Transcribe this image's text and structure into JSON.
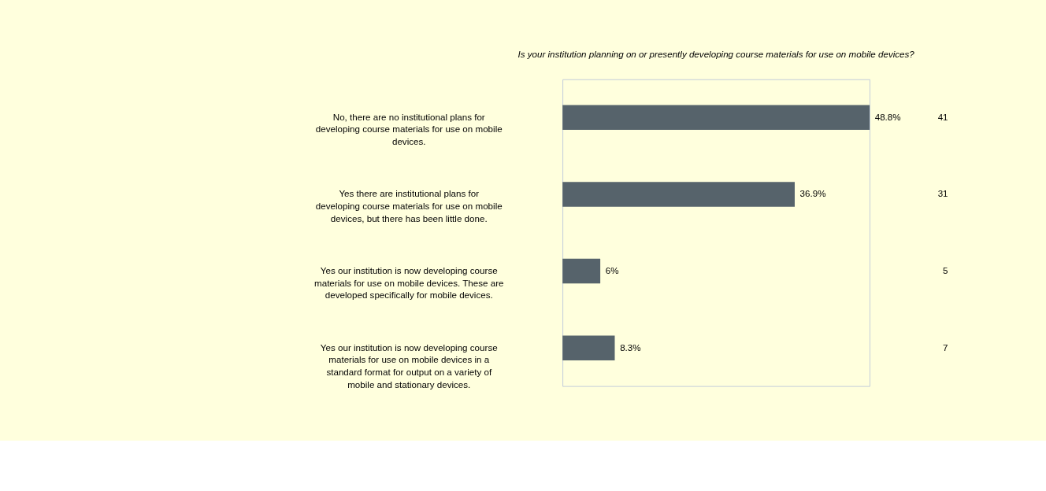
{
  "chart_data": {
    "type": "bar",
    "orientation": "horizontal",
    "title": "Is your institution planning on or presently developing course materials for use on mobile devices?",
    "categories": [
      "No, there are no institutional plans for developing course materials for use on mobile devices.",
      "Yes there are institutional plans for developing course materials for use on mobile devices, but there has been little done.",
      "Yes our institution is now developing course materials for use on mobile devices. These are developed specifically for mobile devices.",
      "Yes our institution is now developing course materials for use on mobile devices in a standard format for output on a variety of mobile and stationary devices."
    ],
    "values": [
      48.8,
      36.9,
      6,
      8.3
    ],
    "value_labels": [
      "48.8%",
      "36.9%",
      "6%",
      "8.3%"
    ],
    "color": "#56636b",
    "annotations": [
      "41",
      "31",
      "5",
      "7"
    ]
  }
}
